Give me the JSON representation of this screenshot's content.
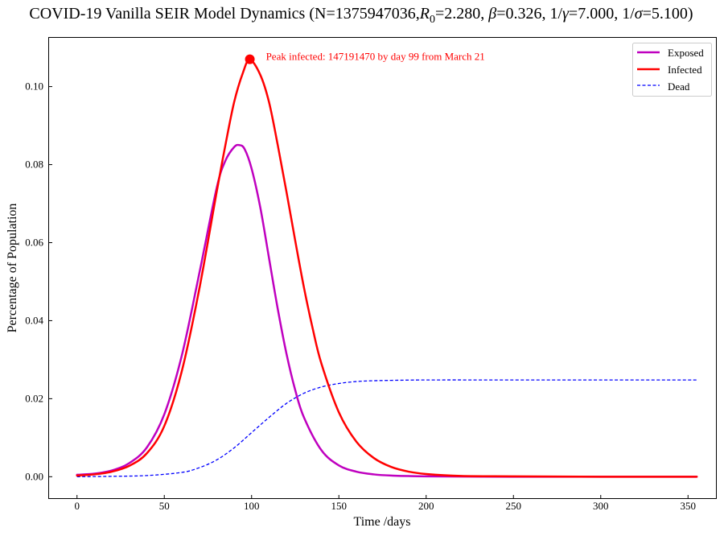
{
  "chart_data": {
    "type": "line",
    "title": "COVID-19 Vanilla SEIR Model Dynamics (N=1375947036,R0=2.280, β=0.326, 1/γ=7.000, 1/σ=5.100)",
    "title_parts": {
      "prefix": "COVID-19 Vanilla SEIR Model Dynamics (N=1375947036,",
      "r_symbol": "R",
      "r_sub": "0",
      "r_value": "=2.280, ",
      "beta_symbol": "β",
      "beta_value": "=0.326, 1/",
      "gamma_symbol": "γ",
      "gamma_value": "=7.000, 1/",
      "sigma_symbol": "σ",
      "sigma_value": "=5.100)"
    },
    "xlabel": "Time /days",
    "ylabel": "Percentage of Population",
    "xlim": [
      -16,
      366
    ],
    "ylim": [
      -0.0055,
      0.1125
    ],
    "xticks": [
      0,
      50,
      100,
      150,
      200,
      250,
      300,
      350
    ],
    "yticks": [
      0.0,
      0.02,
      0.04,
      0.06,
      0.08,
      0.1
    ],
    "ytick_labels": [
      "0.00",
      "0.02",
      "0.04",
      "0.06",
      "0.08",
      "0.10"
    ],
    "grid": false,
    "legend_position": "top-right",
    "colors": {
      "exposed": "#bf00bf",
      "infected": "#ff0000",
      "dead": "#0000ff",
      "annotation": "#ff0000"
    },
    "series": [
      {
        "name": "Exposed",
        "style": "solid",
        "x": [
          0,
          10,
          20,
          30,
          40,
          50,
          60,
          70,
          80,
          85,
          90,
          93,
          96,
          100,
          105,
          110,
          115,
          120,
          125,
          130,
          140,
          150,
          160,
          170,
          180,
          200,
          250,
          300,
          355
        ],
        "values": [
          0.0005,
          0.0008,
          0.0016,
          0.0035,
          0.0075,
          0.016,
          0.031,
          0.052,
          0.074,
          0.081,
          0.0845,
          0.085,
          0.084,
          0.079,
          0.069,
          0.056,
          0.043,
          0.0315,
          0.0222,
          0.0152,
          0.0068,
          0.0029,
          0.0013,
          0.0006,
          0.0003,
          0.0001,
          0.0,
          0.0,
          0.0
        ]
      },
      {
        "name": "Infected",
        "style": "solid",
        "x": [
          0,
          10,
          20,
          30,
          40,
          50,
          60,
          70,
          80,
          85,
          90,
          95,
          99,
          105,
          110,
          115,
          120,
          125,
          130,
          135,
          140,
          150,
          160,
          170,
          180,
          190,
          200,
          220,
          250,
          300,
          355
        ],
        "values": [
          0.0003,
          0.0006,
          0.0013,
          0.0028,
          0.006,
          0.013,
          0.027,
          0.048,
          0.073,
          0.085,
          0.096,
          0.1035,
          0.1069,
          0.103,
          0.096,
          0.085,
          0.073,
          0.0605,
          0.0485,
          0.038,
          0.029,
          0.0165,
          0.009,
          0.0048,
          0.0025,
          0.0013,
          0.0007,
          0.0002,
          0.0001,
          0.0,
          0.0
        ]
      },
      {
        "name": "Dead",
        "style": "dashed",
        "x": [
          0,
          20,
          40,
          60,
          70,
          80,
          90,
          100,
          110,
          120,
          130,
          140,
          150,
          160,
          170,
          180,
          200,
          250,
          300,
          355
        ],
        "values": [
          0.0,
          0.0001,
          0.0003,
          0.0011,
          0.0023,
          0.0043,
          0.0074,
          0.0113,
          0.0152,
          0.0188,
          0.0214,
          0.023,
          0.0239,
          0.0244,
          0.0246,
          0.0247,
          0.0248,
          0.0248,
          0.0248,
          0.0248
        ]
      }
    ],
    "peak": {
      "x": 99,
      "y": 0.107,
      "label": "Peak infected: 147191470 by day 99 from March 21"
    }
  }
}
